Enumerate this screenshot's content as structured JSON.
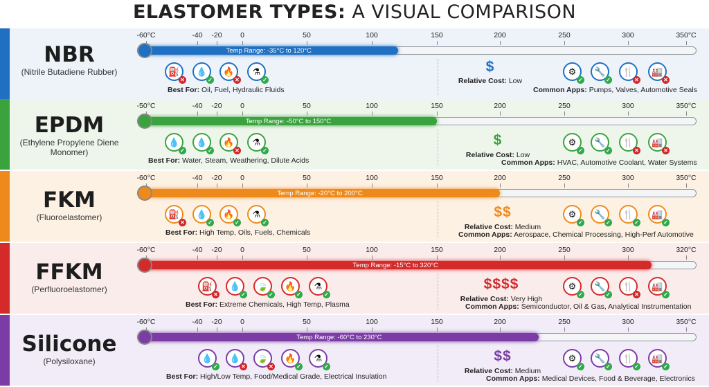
{
  "title": {
    "bold": "ELASTOMER TYPES:",
    "rest": " A VISUAL COMPARISON"
  },
  "common": {
    "best_label": "Best For:",
    "cost_label": "Relative Cost:",
    "apps_label": "Common Apps:"
  },
  "rows": [
    {
      "id": "nbr",
      "name": "NBR",
      "subtitle": "(Nitrile Butadiene Rubber)",
      "color": "#1f6fc2",
      "bg": "#eef3fa",
      "ticks": [
        "-60°C",
        "-40",
        "-20",
        "0",
        "50",
        "100",
        "150",
        "200",
        "250",
        "300",
        "350°C"
      ],
      "range_label": "Temp Range: -35°C to 120°C",
      "range": {
        "min": -35,
        "max": 120
      },
      "best_icons": [
        {
          "name": "fuel-icon",
          "glyph": "⛽",
          "status": "no"
        },
        {
          "name": "oil-drop-icon",
          "glyph": "💧",
          "status": "ok"
        },
        {
          "name": "fire-icon",
          "glyph": "🔥",
          "status": "no"
        },
        {
          "name": "chemical-flask-icon",
          "glyph": "⚗",
          "status": "ok"
        }
      ],
      "best_for": "Oil, Fuel, Hydraulic Fluids",
      "cost_symbol": "$",
      "cost": "Low",
      "app_icons": [
        {
          "name": "pump-icon",
          "glyph": "⚙",
          "status": "ok"
        },
        {
          "name": "valve-icon",
          "glyph": "🔧",
          "status": "ok"
        },
        {
          "name": "food-icon",
          "glyph": "🍴",
          "status": "no"
        },
        {
          "name": "factory-icon",
          "glyph": "🏭",
          "status": "no"
        }
      ],
      "apps": "Pumps, Valves, Automotive Seals"
    },
    {
      "id": "epdm",
      "name": "EPDM",
      "subtitle": "(Ethylene Propylene Diene Monomer)",
      "color": "#3aa33e",
      "bg": "#eef6ec",
      "ticks": [
        "-50°C",
        "-40",
        "-20",
        "0",
        "50",
        "100",
        "150",
        "200",
        "250",
        "300",
        "350°C"
      ],
      "range_label": "Temp Range: -50°C to 150°C",
      "range": {
        "min": -50,
        "max": 150
      },
      "best_icons": [
        {
          "name": "oil-drop-icon",
          "glyph": "💧",
          "status": "ok"
        },
        {
          "name": "water-drop-icon",
          "glyph": "💧",
          "status": "ok"
        },
        {
          "name": "fire-icon",
          "glyph": "🔥",
          "status": "no"
        },
        {
          "name": "chemical-flask-icon",
          "glyph": "⚗",
          "status": "ok"
        }
      ],
      "best_for": "Water, Steam, Weathering, Dilute Acids",
      "cost_symbol": "$",
      "cost": "Low",
      "app_icons": [
        {
          "name": "pump-icon",
          "glyph": "⚙",
          "status": "ok"
        },
        {
          "name": "valve-icon",
          "glyph": "🔧",
          "status": "ok"
        },
        {
          "name": "food-icon",
          "glyph": "🍴",
          "status": "no"
        },
        {
          "name": "factory-icon",
          "glyph": "🏭",
          "status": "no"
        }
      ],
      "apps": "HVAC, Automotive Coolant, Water Systems"
    },
    {
      "id": "fkm",
      "name": "FKM",
      "subtitle": "(Fluoroelastomer)",
      "color": "#ee8a1c",
      "bg": "#fdf1e4",
      "ticks": [
        "-60°C",
        "-40",
        "-20",
        "0",
        "50",
        "100",
        "150",
        "200",
        "250",
        "300",
        "350°C"
      ],
      "range_label": "Temp Range: -20°C to 200°C",
      "range": {
        "min": -20,
        "max": 200
      },
      "best_icons": [
        {
          "name": "fuel-icon",
          "glyph": "⛽",
          "status": "no"
        },
        {
          "name": "oil-drop-icon",
          "glyph": "💧",
          "status": "ok"
        },
        {
          "name": "fire-icon",
          "glyph": "🔥",
          "status": "ok"
        },
        {
          "name": "chemical-flask-icon",
          "glyph": "⚗",
          "status": "ok"
        }
      ],
      "best_for": "High Temp, Oils, Fuels, Chemicals",
      "cost_symbol": "$$",
      "cost": "Medium",
      "app_icons": [
        {
          "name": "pump-icon",
          "glyph": "⚙",
          "status": "ok"
        },
        {
          "name": "valve-icon",
          "glyph": "🔧",
          "status": "ok"
        },
        {
          "name": "food-icon",
          "glyph": "🍴",
          "status": "ok"
        },
        {
          "name": "factory-icon",
          "glyph": "🏭",
          "status": "ok"
        }
      ],
      "apps": "Aerospace, Chemical Processing, High-Perf Automotive"
    },
    {
      "id": "ffkm",
      "name": "FFKM",
      "subtitle": "(Perfluoroelastomer)",
      "color": "#d42a2a",
      "bg": "#fbecec",
      "ticks": [
        "-60°C",
        "-40",
        "-20",
        "0",
        "50",
        "100",
        "150",
        "200",
        "250",
        "300",
        "320°C"
      ],
      "range_label": "Temp Range: -15°C to 320°C",
      "range": {
        "min": -15,
        "max": 320
      },
      "best_icons": [
        {
          "name": "fuel-icon",
          "glyph": "⛽",
          "status": "no"
        },
        {
          "name": "oil-drop-icon",
          "glyph": "💧",
          "status": "ok"
        },
        {
          "name": "weathering-icon",
          "glyph": "🍃",
          "status": "ok"
        },
        {
          "name": "fire-icon",
          "glyph": "🔥",
          "status": "ok"
        },
        {
          "name": "chemical-flask-icon",
          "glyph": "⚗",
          "status": "ok"
        }
      ],
      "best_for": "Extreme Chemicals, High Temp, Plasma",
      "cost_symbol": "$$$$",
      "cost": "Very High",
      "app_icons": [
        {
          "name": "pump-icon",
          "glyph": "⚙",
          "status": "ok"
        },
        {
          "name": "valve-icon",
          "glyph": "🔧",
          "status": "ok"
        },
        {
          "name": "food-icon",
          "glyph": "🍴",
          "status": "no"
        },
        {
          "name": "factory-icon",
          "glyph": "🏭",
          "status": "ok"
        }
      ],
      "apps": "Semiconductor, Oil & Gas, Analytical Instrumentation"
    },
    {
      "id": "silicone",
      "name": "Silicone",
      "subtitle": "(Polysiloxane)",
      "color": "#7b3ca6",
      "bg": "#f1ecf7",
      "ticks": [
        "-60°C",
        "-40",
        "-20",
        "0",
        "50",
        "100",
        "150",
        "200",
        "250",
        "300",
        "350°C"
      ],
      "range_label": "Temp Range: -60°C to 230°C",
      "range": {
        "min": -60,
        "max": 230
      },
      "best_icons": [
        {
          "name": "water-drop-icon",
          "glyph": "💧",
          "status": "ok"
        },
        {
          "name": "oil-drop-icon",
          "glyph": "💧",
          "status": "no"
        },
        {
          "name": "weathering-icon",
          "glyph": "🍃",
          "status": "no"
        },
        {
          "name": "fire-icon",
          "glyph": "🔥",
          "status": "ok"
        },
        {
          "name": "chemical-flask-icon",
          "glyph": "⚗",
          "status": "ok"
        }
      ],
      "best_for": "High/Low Temp, Food/Medical Grade, Electrical Insulation",
      "cost_symbol": "$$",
      "cost": "Medium",
      "app_icons": [
        {
          "name": "pump-icon",
          "glyph": "⚙",
          "status": "ok"
        },
        {
          "name": "valve-icon",
          "glyph": "🔧",
          "status": "ok"
        },
        {
          "name": "food-icon",
          "glyph": "🍴",
          "status": "ok"
        },
        {
          "name": "factory-icon",
          "glyph": "🏭",
          "status": "ok"
        }
      ],
      "apps": "Medical Devices, Food & Beverage, Electronics"
    }
  ]
}
